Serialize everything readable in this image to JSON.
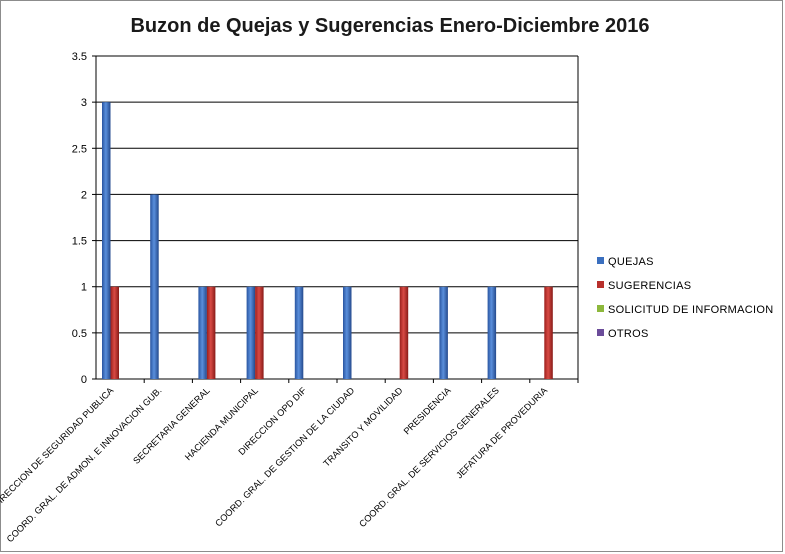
{
  "chart_data": {
    "type": "bar",
    "title": "Buzon de Quejas y Sugerencias Enero-Diciembre 2016",
    "xlabel": "",
    "ylabel": "",
    "ylim": [
      0,
      3.5
    ],
    "yticks": [
      "0",
      "0.5",
      "1",
      "1.5",
      "2",
      "2.5",
      "3",
      "3.5"
    ],
    "grid": true,
    "legend_position": "right",
    "categories": [
      "DIRECCION DE SEGURIDAD PUBLICA",
      "COORD. GRAL. DE ADMON. E INNOVACION GUB.",
      "SECRETARIA GENERAL",
      "HACIENDA MUNICIPAL",
      "DIRECCION OPD DIF",
      "COORD. GRAL. DE GESTION DE LA CIUDAD",
      "TRANSITO Y MOVILIDAD",
      "PRESIDENCIA",
      "COORD. GRAL. DE SERVICIOS GENERALES",
      "JEFATURA DE PROVEDURIA"
    ],
    "series": [
      {
        "name": "QUEJAS",
        "color": "#3a6fbf",
        "values": [
          3,
          2,
          1,
          1,
          1,
          1,
          0,
          1,
          1,
          0
        ]
      },
      {
        "name": "SUGERENCIAS",
        "color": "#b8302c",
        "values": [
          1,
          0,
          1,
          1,
          0,
          0,
          1,
          0,
          0,
          1
        ]
      },
      {
        "name": "SOLICITUD DE INFORMACION",
        "color": "#8db83c",
        "values": [
          0,
          0,
          0,
          0,
          0,
          0,
          0,
          0,
          0,
          0
        ]
      },
      {
        "name": "OTROS",
        "color": "#6b4c9a",
        "values": [
          0,
          0,
          0,
          0,
          0,
          0,
          0,
          0,
          0,
          0
        ]
      }
    ]
  }
}
